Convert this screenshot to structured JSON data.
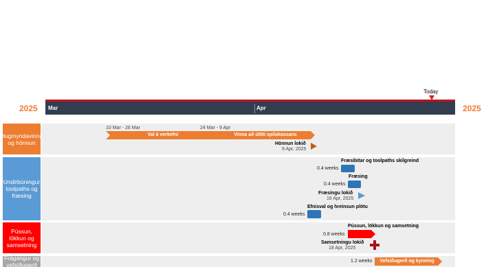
{
  "timeline": {
    "year_left": "2025",
    "year_right": "2025",
    "today_label": "Today",
    "months": [
      "Mar",
      "Apr"
    ]
  },
  "colors": {
    "orange": "#ED7D31",
    "blue_light": "#5B9BD5",
    "blue_dark": "#2E75B6",
    "red": "#FF0000",
    "dark_red": "#A5141B",
    "gray": "#A6A6A6",
    "scale_bg": "#323E4F"
  },
  "swimlanes": [
    {
      "label": "Hugmyndavinna og hönnun"
    },
    {
      "label": "Undirbúningur toolpaths og fræsing"
    },
    {
      "label": "Pússun, lökkun og samsetning"
    },
    {
      "label": "Frágangur og vefsíðugerð"
    }
  ],
  "lane1": {
    "task1_range": "10 Mar - 26 Mar",
    "task1_name": "Val á verkefni",
    "task2_range": "24 Mar - 9 Apr",
    "task2_name": "Vinna að útliti spilakassans",
    "milestone_name": "Hönnun lokið",
    "milestone_date": "9 Apr, 2025",
    "milestone_icon": "triangle-right-icon"
  },
  "lane2": {
    "task1_name": "Fræsibitar og toolpaths skilgreind",
    "task1_duration": "0.4 weeks",
    "task2_name": "Fræsing",
    "task2_duration": "0.4 weeks",
    "milestone_name": "Fræsingu lokið",
    "milestone_date": "16 Apr, 2025",
    "milestone_icon": "triangle-right-icon",
    "task3_name": "Efnisval og hreinsun plötu",
    "task3_duration": "0.4 weeks"
  },
  "lane3": {
    "task1_name": "Pússun, lökkun og samsetning",
    "task1_duration": "0.8 weeks",
    "milestone_name": "Samsetningu lokið",
    "milestone_date": "18 Apr, 2025",
    "milestone_icon": "cross-icon"
  },
  "lane4": {
    "task1_name": "Vefsíðugerð og kynning",
    "task1_duration": "1.2 weeks"
  }
}
